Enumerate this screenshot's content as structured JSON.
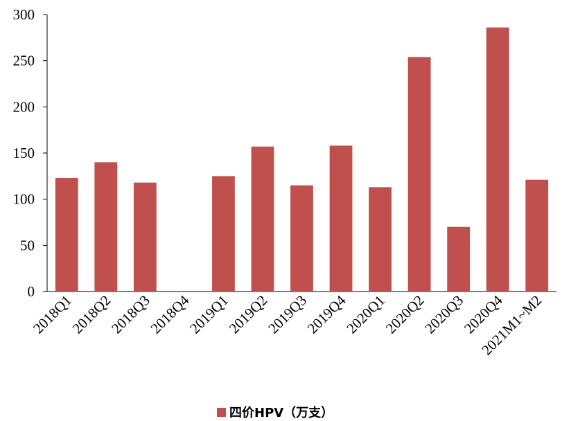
{
  "chart_data": {
    "type": "bar",
    "categories": [
      "2018Q1",
      "2018Q2",
      "2018Q3",
      "2018Q4",
      "2019Q1",
      "2019Q2",
      "2019Q3",
      "2019Q4",
      "2020Q1",
      "2020Q2",
      "2020Q3",
      "2020Q4",
      "2021M1~M2"
    ],
    "series": [
      {
        "name": "四价HPV（万支）",
        "color": "#c0504d",
        "values": [
          123,
          140,
          118,
          null,
          125,
          157,
          115,
          158,
          113,
          254,
          70,
          286,
          121
        ]
      }
    ],
    "ylim": [
      0,
      300
    ],
    "yticks": [
      0,
      50,
      100,
      150,
      200,
      250,
      300
    ],
    "grid": false,
    "legend": "bottom"
  }
}
